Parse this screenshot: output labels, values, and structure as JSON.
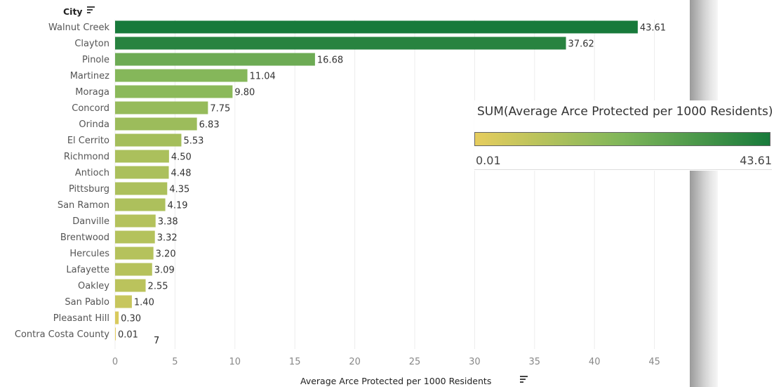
{
  "colors": {
    "low": "#e6cd5e",
    "mid": "#7fb65a",
    "high": "#187a3b",
    "grid": "#ececec",
    "text": "#555555"
  },
  "header": {
    "column_label": "City"
  },
  "legend": {
    "title": "SUM(Average Arce Protected per 1000 Residents)",
    "min_label": "0.01",
    "max_label": "43.61"
  },
  "annotation": {
    "stray_text": "7"
  },
  "chart_data": {
    "type": "bar",
    "orientation": "horizontal",
    "categories": [
      "Walnut Creek",
      "Clayton",
      "Pinole",
      "Martinez",
      "Moraga",
      "Concord",
      "Orinda",
      "El Cerrito",
      "Richmond",
      "Antioch",
      "Pittsburg",
      "San Ramon",
      "Danville",
      "Brentwood",
      "Hercules",
      "Lafayette",
      "Oakley",
      "San Pablo",
      "Pleasant Hill",
      "Contra Costa County"
    ],
    "values": [
      43.61,
      37.62,
      16.68,
      11.04,
      9.8,
      7.75,
      6.83,
      5.53,
      4.5,
      4.48,
      4.35,
      4.19,
      3.38,
      3.32,
      3.2,
      3.09,
      2.55,
      1.4,
      0.3,
      0.01
    ],
    "value_labels": [
      "43.61",
      "37.62",
      "16.68",
      "11.04",
      "9.80",
      "7.75",
      "6.83",
      "5.53",
      "4.50",
      "4.48",
      "4.35",
      "4.19",
      "3.38",
      "3.32",
      "3.20",
      "3.09",
      "2.55",
      "1.40",
      "0.30",
      "0.01"
    ],
    "xlabel": "Average Arce Protected per 1000 Residents",
    "ylabel": "City",
    "xlim": [
      0,
      48
    ],
    "xticks": [
      0,
      5,
      10,
      15,
      20,
      25,
      30,
      35,
      40,
      45
    ],
    "grid": true,
    "color_scale": {
      "min": 0.01,
      "max": 43.61
    }
  }
}
